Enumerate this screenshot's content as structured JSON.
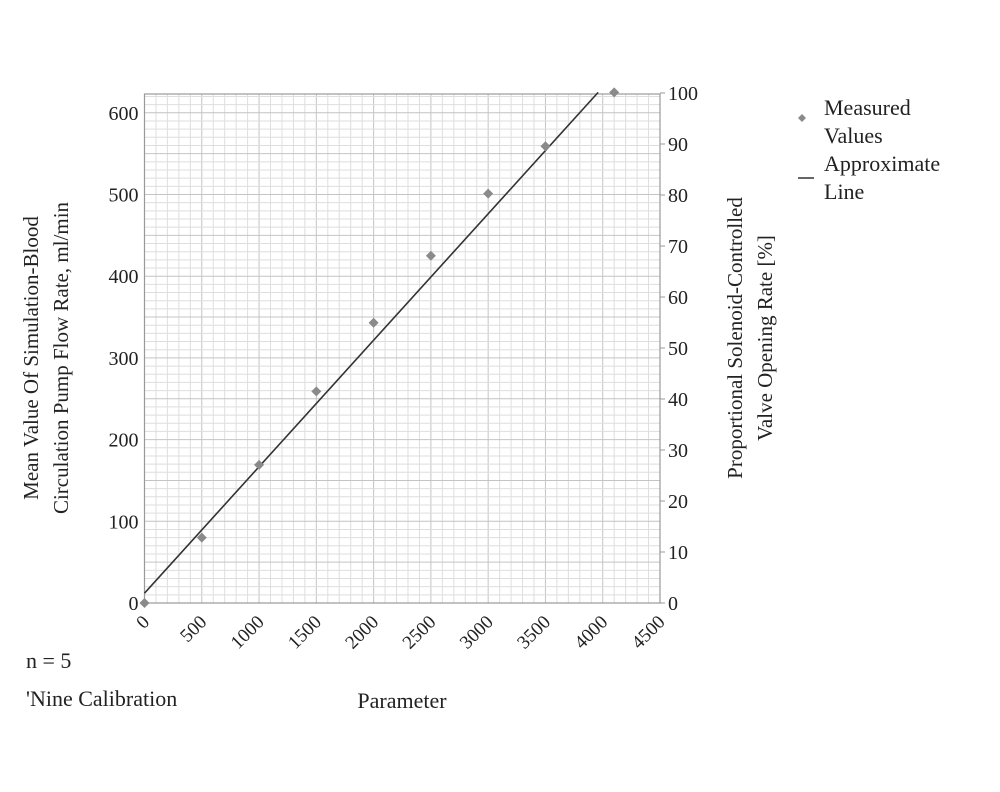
{
  "chart_data": {
    "type": "scatter",
    "title": "",
    "xlabel": "Parameter",
    "ylabel": "Mean Value Of Simulation-Blood Circulation Pump Flow Rate, ml/min",
    "ylabel_lines": [
      "Mean Value Of Simulation-Blood",
      "Circulation Pump Flow Rate, ml/min"
    ],
    "y2label": "Proportional Solenoid-Controlled Valve Opening Rate [%]",
    "y2label_lines": [
      "Proportional Solenoid-Controlled",
      "Valve Opening Rate [%]"
    ],
    "xlim": [
      0,
      4500
    ],
    "ylim": [
      0,
      625
    ],
    "y2lim": [
      0,
      100
    ],
    "xticks": [
      0,
      500,
      1000,
      1500,
      2000,
      2500,
      3000,
      3500,
      4000,
      4500
    ],
    "yticks": [
      0,
      100,
      200,
      300,
      400,
      500,
      600
    ],
    "y2ticks": [
      0,
      10,
      20,
      30,
      40,
      50,
      60,
      70,
      80,
      90,
      100
    ],
    "grid": true,
    "legend_position": "right",
    "series": [
      {
        "name": "Measured Values",
        "kind": "scatter",
        "marker": "diamond",
        "color": "#8a8a8a",
        "x": [
          0,
          500,
          1000,
          1500,
          2000,
          2500,
          3000,
          3500,
          4100
        ],
        "y": [
          0,
          80,
          169,
          259,
          343,
          425,
          501,
          559,
          625
        ]
      },
      {
        "name": "Approximate Line",
        "kind": "line",
        "color": "#333333",
        "x": [
          0,
          3960
        ],
        "y": [
          12,
          625
        ]
      }
    ],
    "legend": [
      {
        "label_lines": [
          "Measured Values"
        ],
        "lines": [
          "Measured",
          "Values"
        ]
      },
      {
        "label_lines": [
          "Approximate Line"
        ],
        "lines": [
          "Approximate",
          "Line"
        ]
      }
    ],
    "annotations": [
      "n = 5",
      "'Nine Calibration"
    ]
  }
}
